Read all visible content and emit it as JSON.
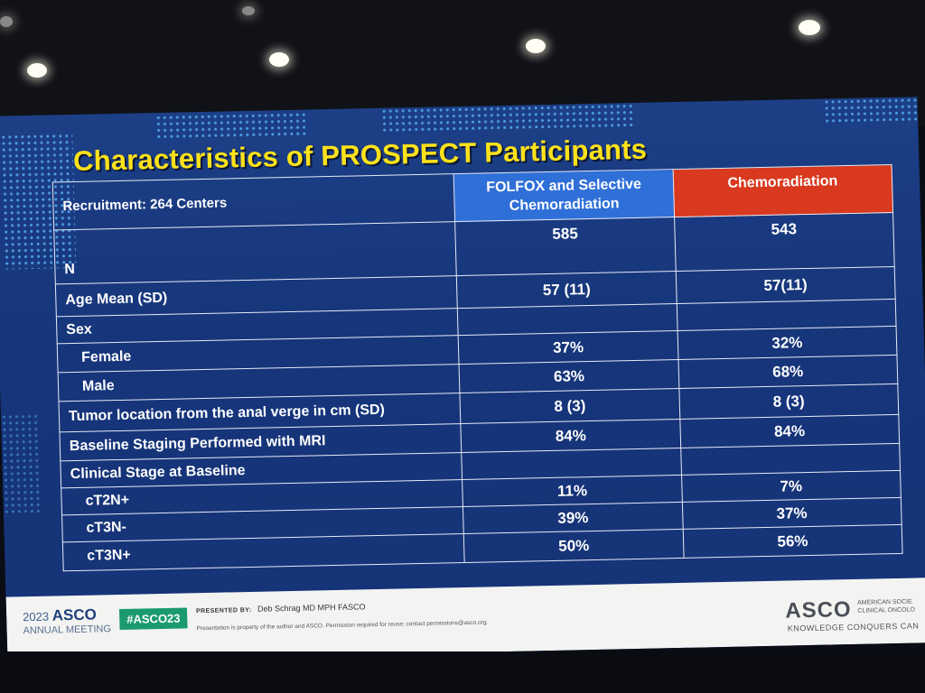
{
  "slide": {
    "title": "Characteristics of PROSPECT Participants",
    "recruitment": "Recruitment: 264 Centers",
    "col_a_line1": "FOLFOX and Selective",
    "col_a_line2": "Chemoradiation",
    "col_b": "Chemoradiation",
    "rows": [
      {
        "label": "N",
        "a": "585",
        "b": "543"
      },
      {
        "label": "Age Mean (SD)",
        "a": "57 (11)",
        "b": "57(11)"
      },
      {
        "label": "Sex",
        "a": "",
        "b": ""
      },
      {
        "label": "Female",
        "a": "37%",
        "b": "32%"
      },
      {
        "label": "Male",
        "a": "63%",
        "b": "68%"
      },
      {
        "label": "Tumor location from the anal verge in cm (SD)",
        "a": "8 (3)",
        "b": "8 (3)"
      },
      {
        "label": "Baseline Staging Performed with MRI",
        "a": "84%",
        "b": "84%"
      },
      {
        "label": "Clinical Stage at Baseline",
        "a": "",
        "b": ""
      },
      {
        "label": "cT2N+",
        "a": "11%",
        "b": "7%"
      },
      {
        "label": "cT3N-",
        "a": "39%",
        "b": "37%"
      },
      {
        "label": "cT3N+",
        "a": "50%",
        "b": "56%"
      }
    ]
  },
  "footer": {
    "year": "2023",
    "asco": "ASCO",
    "meeting": "ANNUAL MEETING",
    "hashtag": "#ASCO23",
    "presented_by_label": "PRESENTED BY:",
    "presenter": "Deb Schrag MD MPH FASCO",
    "disclaimer": "Presentation is property of the author and ASCO. Permission required for reuse; contact permissions@asco.org.",
    "logo": "ASCO",
    "org_line1": "AMERICAN SOCIE",
    "org_line2": "CLINICAL ONCOLO",
    "tagline": "KNOWLEDGE CONQUERS CAN"
  },
  "colors": {
    "title": "#ffe21a",
    "header_blue": "#2f6fd8",
    "header_red": "#d8391f",
    "slide_bg": "#1c3f86",
    "hashtag_bg": "#1a9a6e"
  }
}
